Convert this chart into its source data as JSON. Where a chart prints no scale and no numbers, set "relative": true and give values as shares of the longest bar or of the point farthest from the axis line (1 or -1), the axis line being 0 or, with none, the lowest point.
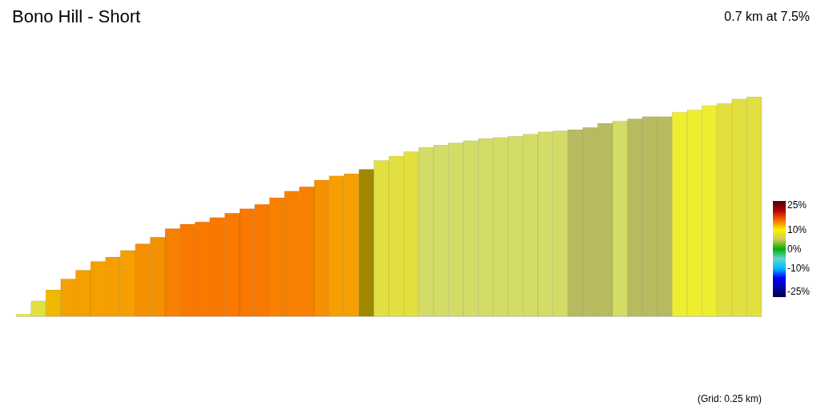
{
  "chart_data": {
    "type": "bar",
    "title": "Bono Hill - Short",
    "subtitle": "0.7 km at 7.5%",
    "relative": true,
    "categories": [
      null,
      null,
      null,
      null,
      null,
      null,
      null,
      null,
      null,
      null,
      null,
      null,
      null,
      null,
      null,
      null,
      null,
      null,
      null,
      null,
      null,
      null,
      null,
      null,
      null,
      null,
      null,
      null,
      null,
      null,
      null,
      null,
      null,
      null,
      null,
      null,
      null,
      null,
      null,
      null,
      null,
      null,
      null,
      null,
      null,
      null,
      null,
      null,
      null,
      null
    ],
    "values": [
      0.01,
      0.07,
      0.12,
      0.17,
      0.21,
      0.25,
      0.27,
      0.3,
      0.33,
      0.36,
      0.4,
      0.42,
      0.43,
      0.45,
      0.47,
      0.49,
      0.51,
      0.54,
      0.57,
      0.59,
      0.62,
      0.64,
      0.65,
      0.67,
      0.71,
      0.73,
      0.75,
      0.77,
      0.78,
      0.79,
      0.8,
      0.81,
      0.815,
      0.82,
      0.83,
      0.84,
      0.845,
      0.85,
      0.86,
      0.88,
      0.89,
      0.9,
      0.91,
      0.91,
      0.93,
      0.94,
      0.96,
      0.97,
      0.99,
      1
    ],
    "colors": [
      "#eeee30",
      "#e2e040",
      "#f0b800",
      "#f5a000",
      "#f5a000",
      "#f5a000",
      "#f5a000",
      "#f5a000",
      "#f59000",
      "#f59000",
      "#f88000",
      "#f87800",
      "#f87800",
      "#f87800",
      "#f87800",
      "#f87800",
      "#f87800",
      "#f88000",
      "#f88000",
      "#f88000",
      "#f59000",
      "#f5a000",
      "#f5a000",
      "#a08800",
      "#e2e040",
      "#e2e040",
      "#e2e040",
      "#d4dc68",
      "#d4dc68",
      "#d4dc68",
      "#d4dc68",
      "#d4dc68",
      "#d4dc68",
      "#d4dc68",
      "#d4dc68",
      "#d4dc68",
      "#d4dc68",
      "#b8bb60",
      "#b8bb60",
      "#b8bb60",
      "#d4dc68",
      "#b8bb60",
      "#b8bb60",
      "#b8bb60",
      "#eeee30",
      "#eeee30",
      "#eeee30",
      "#e2e040",
      "#e2e040",
      "#e2e040"
    ],
    "clim": [
      -25,
      25
    ],
    "cticks": [
      {
        "value": 25,
        "label": "25%"
      },
      {
        "value": 10,
        "label": "10%"
      },
      {
        "value": 0,
        "label": "0%"
      },
      {
        "value": -10,
        "label": "-10%"
      },
      {
        "value": -25,
        "label": "-25%"
      }
    ],
    "annotations": [
      "(Grid: 0.25 km)"
    ]
  }
}
